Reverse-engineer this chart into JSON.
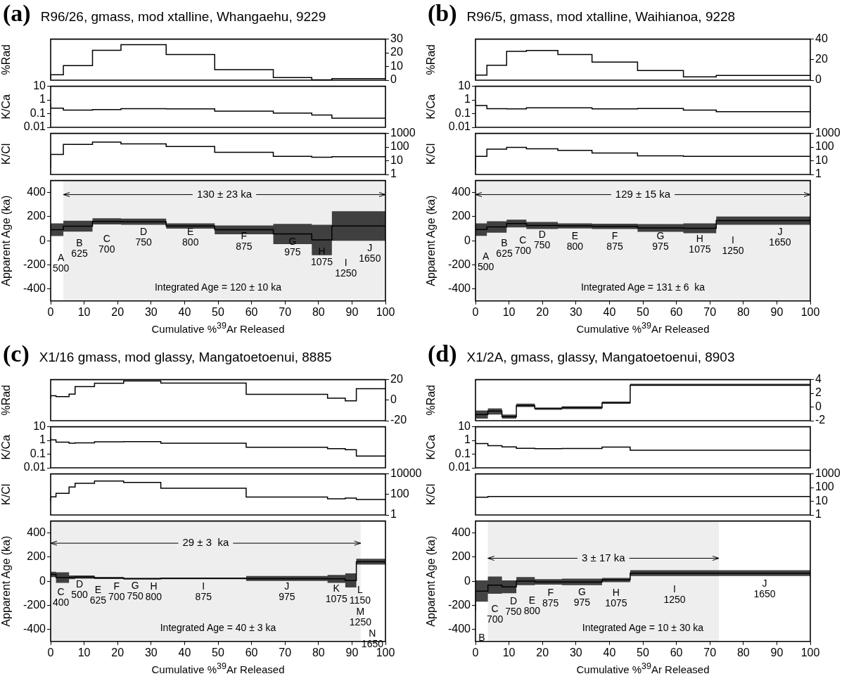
{
  "chart_data": [
    {
      "type": "step",
      "title": "(a)",
      "subtitle": "R96/26, gmass, mod xtalline, Whangaehu, 9229",
      "ylabel": "%Rad",
      "x": [
        0,
        3.8,
        12.5,
        21,
        34.5,
        49,
        66.5,
        78,
        84,
        90,
        100
      ],
      "series": [
        {
          "color": "#000000",
          "axis": "y2",
          "values": [
            1,
            4,
            10.7,
            21.8,
            26,
            18.7,
            7.7,
            1.9,
            0.3,
            1.2,
            1.2
          ]
        }
      ],
      "xlim": [
        0,
        100
      ],
      "y2lim": [
        0,
        30
      ],
      "y2ticks": [
        0,
        10,
        20,
        30
      ],
      "tick_labels": "y"
    },
    {
      "type": "step",
      "ylabel": "K/Ca",
      "x": [
        0,
        3.8,
        12.5,
        21,
        34.5,
        49,
        66.5,
        78,
        84,
        90,
        100
      ],
      "series": [
        {
          "color": "#000000",
          "values": [
            0.51,
            0.25,
            0.18,
            0.2,
            0.23,
            0.22,
            0.15,
            0.11,
            0.08,
            0.047,
            0.047
          ]
        }
      ],
      "xlim": [
        0,
        100
      ],
      "ylim": [
        0.01,
        10
      ],
      "yticks": [
        0.01,
        0.1,
        1,
        10
      ],
      "log": "y",
      "tick_labels": "y"
    },
    {
      "type": "step",
      "ylabel": "K/Cl",
      "x": [
        0,
        3.8,
        12.5,
        21,
        34.5,
        49,
        66.5,
        78,
        84,
        90,
        100
      ],
      "series": [
        {
          "color": "#000000",
          "axis": "y2",
          "values": [
            2.9,
            29,
            155,
            234,
            170,
            110,
            41,
            21,
            18,
            20,
            20
          ]
        }
      ],
      "xlim": [
        0,
        100
      ],
      "y2lim": [
        1,
        1000
      ],
      "y2ticks": [
        1,
        10,
        100,
        1000
      ],
      "log": "y2",
      "tick_labels": "y"
    },
    {
      "type": "step",
      "ylabel": "Apparent Age (ka)",
      "xlabel": "Cumulative %$^{39}$Ar Released",
      "x": [
        0,
        3.8,
        12.5,
        21,
        34.5,
        49,
        66.5,
        78,
        84,
        90,
        100
      ],
      "series": [
        {
          "color": "#000000",
          "values": [
            137,
            92,
            121,
            161,
            158,
            123,
            91,
            56,
            7,
            123,
            123
          ],
          "lower": [
            -82,
            39,
            75,
            135,
            133,
            101,
            54,
            -28,
            -120,
            0,
            0
          ],
          "upper": [
            355,
            144,
            166,
            187,
            183,
            144,
            127,
            140,
            133,
            245,
            245
          ]
        }
      ],
      "xlim": [
        0,
        100
      ],
      "xticks": [
        0,
        10,
        20,
        30,
        40,
        50,
        60,
        70,
        80,
        90,
        100
      ],
      "ylim": [
        -500,
        500
      ],
      "yticks": [
        -400,
        -200,
        0,
        200,
        400
      ],
      "bands": [
        {
          "axis": "x",
          "from": 3.8,
          "to": 100,
          "label": "130 ± 23 ka",
          "color": "#eeeeee"
        }
      ],
      "annotations": [
        "A\n500",
        "B\n625",
        "C\n700",
        "D\n750",
        "E\n800",
        "F\n875",
        "G\n975",
        "H\n1075",
        "I\n1250",
        "J\n1650",
        "Integrated Age = 120 ± 10 ka"
      ]
    },
    {
      "type": "step",
      "title": "(b)",
      "subtitle": "R96/5, gmass, mod xtalline, Waihianoa, 9228",
      "ylabel": "%Rad",
      "x": [
        0,
        3.4,
        9.3,
        15.2,
        24.6,
        34.8,
        48.4,
        62.1,
        71.9,
        81.9,
        100
      ],
      "series": [
        {
          "color": "#000000",
          "axis": "y2",
          "values": [
            1.4,
            5,
            14.6,
            28,
            29,
            25,
            17.6,
            9.4,
            3.2,
            4.6,
            4.6
          ]
        }
      ],
      "xlim": [
        0,
        100
      ],
      "y2lim": [
        0,
        40
      ],
      "y2ticks": [
        0,
        20,
        40
      ],
      "tick_labels": "y"
    },
    {
      "type": "step",
      "ylabel": "K/Ca",
      "x": [
        0,
        3.4,
        9.3,
        15.2,
        24.6,
        34.8,
        48.4,
        62.1,
        71.9,
        81.9,
        100
      ],
      "series": [
        {
          "color": "#000000",
          "values": [
            0.79,
            0.39,
            0.23,
            0.22,
            0.27,
            0.27,
            0.22,
            0.24,
            0.18,
            0.14,
            0.14
          ]
        }
      ],
      "xlim": [
        0,
        100
      ],
      "ylim": [
        0.01,
        10
      ],
      "yticks": [
        0.01,
        0.1,
        1,
        10
      ],
      "log": "y",
      "tick_labels": "y"
    },
    {
      "type": "step",
      "ylabel": "K/Cl",
      "x": [
        0,
        3.4,
        9.3,
        15.2,
        24.6,
        34.8,
        48.4,
        62.1,
        71.9,
        81.9,
        100
      ],
      "series": [
        {
          "color": "#000000",
          "axis": "y2",
          "values": [
            2.4,
            21,
            70,
            94,
            76,
            57,
            37,
            23,
            21,
            21,
            21
          ]
        }
      ],
      "xlim": [
        0,
        100
      ],
      "y2lim": [
        1,
        1000
      ],
      "y2ticks": [
        1,
        10,
        100,
        1000
      ],
      "log": "y2",
      "tick_labels": "y"
    },
    {
      "type": "step",
      "ylabel": "Apparent Age (ka)",
      "xlabel": "Cumulative %$^{39}$Ar Released",
      "x": [
        0,
        3.4,
        9.3,
        15.2,
        24.6,
        34.8,
        48.4,
        62.1,
        71.9,
        81.9,
        100
      ],
      "series": [
        {
          "color": "#000000",
          "values": [
            133,
            93,
            115,
            143,
            127,
            124,
            119,
            106,
            104,
            167,
            167
          ],
          "lower": [
            -67,
            41,
            67,
            110,
            97,
            102,
            97,
            74,
            63,
            132,
            132
          ],
          "upper": [
            333,
            145,
            162,
            175,
            156,
            145,
            141,
            138,
            145,
            201,
            201
          ]
        }
      ],
      "xlim": [
        0,
        100
      ],
      "xticks": [
        0,
        10,
        20,
        30,
        40,
        50,
        60,
        70,
        80,
        90,
        100
      ],
      "ylim": [
        -500,
        500
      ],
      "yticks": [
        -400,
        -200,
        0,
        200,
        400
      ],
      "bands": [
        {
          "axis": "x",
          "from": 0,
          "to": 100,
          "label": "129 ± 15 ka",
          "color": "#eeeeee"
        }
      ],
      "annotations": [
        "A\n500",
        "B\n625",
        "C\n700",
        "D\n750",
        "E\n800",
        "F\n875",
        "G\n975",
        "H\n1075",
        "I\n1250",
        "J\n1650",
        "Integrated Age = 131 ± 6  ka"
      ]
    },
    {
      "type": "step",
      "title": "(c)",
      "subtitle": "X1/16 gmass, mod glassy, Mangatoetoenui, 8885",
      "ylabel": "%Rad",
      "x": [
        0,
        1.6,
        5.5,
        7.3,
        13.1,
        21.8,
        32.9,
        58.4,
        82.7,
        88,
        91.3,
        92.6,
        100
      ],
      "series": [
        {
          "color": "#000000",
          "axis": "y2",
          "values": [
            1.6,
            4.3,
            3.4,
            5.9,
            13.3,
            16.5,
            18.7,
            16.7,
            5.7,
            2,
            -0.7,
            11.2,
            11.2
          ]
        }
      ],
      "xlim": [
        0,
        100
      ],
      "y2lim": [
        -20,
        20
      ],
      "y2ticks": [
        -20,
        0,
        20
      ],
      "tick_labels": "y"
    },
    {
      "type": "step",
      "ylabel": "K/Ca",
      "x": [
        0,
        1.6,
        5.5,
        7.3,
        13.1,
        21.8,
        32.9,
        58.4,
        82.7,
        88,
        91.3,
        92.6,
        100
      ],
      "series": [
        {
          "color": "#000000",
          "values": [
            1.7,
            1.1,
            0.76,
            0.62,
            0.67,
            0.79,
            0.82,
            0.62,
            0.32,
            0.25,
            0.21,
            0.073,
            0.073
          ]
        }
      ],
      "xlim": [
        0,
        100
      ],
      "ylim": [
        0.01,
        10
      ],
      "yticks": [
        0.01,
        0.1,
        1,
        10
      ],
      "log": "y",
      "tick_labels": "y"
    },
    {
      "type": "step",
      "ylabel": "K/Cl",
      "x": [
        0,
        1.6,
        5.5,
        7.3,
        13.1,
        21.8,
        32.9,
        58.4,
        82.7,
        88,
        91.3,
        92.6,
        100
      ],
      "series": [
        {
          "color": "#000000",
          "axis": "y2",
          "values": [
            21,
            58,
            130,
            520,
            1200,
            2000,
            1500,
            400,
            55,
            37,
            44,
            32,
            32
          ]
        }
      ],
      "xlim": [
        0,
        100
      ],
      "y2lim": [
        1,
        10000
      ],
      "y2ticks": [
        1,
        100,
        10000
      ],
      "log": "y2",
      "tick_labels": "y"
    },
    {
      "type": "step",
      "ylabel": "Apparent Age (ka)",
      "xlabel": "Cumulative %$^{39}$Ar Released",
      "x": [
        0,
        1.6,
        5.5,
        7.3,
        13.1,
        21.8,
        32.9,
        58.4,
        82.7,
        88,
        91.3,
        92.6,
        100
      ],
      "series": [
        {
          "color": "#000000",
          "values": [
            67,
            56,
            30,
            32,
            35,
            27,
            22,
            24,
            22,
            20,
            6,
            162,
            162
          ],
          "lower": [
            -30,
            35,
            -13,
            17,
            22,
            19,
            15,
            17,
            2,
            -13,
            -52,
            138,
            138
          ],
          "upper": [
            164,
            78,
            74,
            48,
            48,
            35,
            28,
            30,
            43,
            52,
            65,
            186,
            186
          ]
        }
      ],
      "xlim": [
        0,
        100
      ],
      "xticks": [
        0,
        10,
        20,
        30,
        40,
        50,
        60,
        70,
        80,
        90,
        100
      ],
      "ylim": [
        -500,
        500
      ],
      "yticks": [
        -400,
        -200,
        0,
        200,
        400
      ],
      "bands": [
        {
          "axis": "x",
          "from": 0,
          "to": 92.6,
          "label": "29 ± 3  ka",
          "color": "#eeeeee"
        }
      ],
      "annotations": [
        "C\n400",
        "D\n500",
        "E\n625",
        "F\n700",
        "G\n750",
        "H\n800",
        "I\n875",
        "J\n975",
        "K\n1075",
        "L\n1150",
        "M\n1250",
        "N\n1650",
        "Integrated Age = 40 ± 3 ka"
      ]
    },
    {
      "type": "step",
      "title": "(d)",
      "subtitle": "X1/2A, gmass, glassy, Mangatoetoenui, 8903",
      "ylabel": "%Rad",
      "x": [
        0,
        3.7,
        7.9,
        12.2,
        17.7,
        25.8,
        37.8,
        46.2,
        72.7,
        100
      ],
      "series": [
        {
          "color": "#000000",
          "axis": "y2",
          "values": [
            -1.4,
            -1.1,
            -0.6,
            -1.4,
            0.2,
            -0.2,
            -0.1,
            0.6,
            3.2,
            3.2
          ],
          "lower": [
            -2,
            -1.7,
            -1.1,
            -1.7,
            0,
            -0.4,
            -0.3,
            0.5,
            3.1,
            3.1
          ],
          "upper": [
            -0.7,
            -0.5,
            -0.2,
            -1.1,
            0.5,
            -0.1,
            0.1,
            0.8,
            3.4,
            3.4
          ]
        }
      ],
      "xlim": [
        0,
        100
      ],
      "y2lim": [
        -2,
        4
      ],
      "y2ticks": [
        -2,
        0,
        2,
        4
      ],
      "tick_labels": "y"
    },
    {
      "type": "step",
      "ylabel": "K/Ca",
      "x": [
        0,
        3.7,
        7.9,
        12.2,
        17.7,
        25.8,
        37.8,
        46.2,
        72.7,
        100
      ],
      "series": [
        {
          "color": "#000000",
          "values": [
            0.8,
            0.6,
            0.42,
            0.34,
            0.27,
            0.25,
            0.26,
            0.33,
            0.19,
            0.19
          ]
        }
      ],
      "xlim": [
        0,
        100
      ],
      "ylim": [
        0.01,
        10
      ],
      "yticks": [
        0.01,
        0.1,
        1,
        10
      ],
      "log": "y",
      "tick_labels": "y"
    },
    {
      "type": "step",
      "ylabel": "K/Cl",
      "x": [
        0,
        3.7,
        7.9,
        12.2,
        17.7,
        25.8,
        37.8,
        46.2,
        72.7,
        100
      ],
      "series": [
        {
          "color": "#000000",
          "axis": "y2",
          "values": [
            18,
            20,
            22,
            22,
            22,
            22,
            22,
            22,
            22,
            22
          ]
        }
      ],
      "xlim": [
        0,
        100
      ],
      "y2lim": [
        1,
        1000
      ],
      "y2ticks": [
        1,
        10,
        100,
        1000
      ],
      "log": "y2",
      "tick_labels": "y"
    },
    {
      "type": "step",
      "ylabel": "Apparent Age (ka)",
      "xlabel": "Cumulative %$^{39}$Ar Released",
      "x": [
        0,
        3.7,
        7.9,
        12.2,
        17.7,
        25.8,
        37.8,
        46.2,
        72.7,
        100
      ],
      "series": [
        {
          "color": "#000000",
          "values": [
            -248,
            -82,
            -33,
            -47,
            1,
            -6,
            -6,
            11,
            67,
            67
          ],
          "lower": [
            -409,
            -170,
            -104,
            -100,
            -33,
            -28,
            -33,
            -7,
            43,
            43
          ],
          "upper": [
            -87,
            7,
            39,
            7,
            35,
            17,
            22,
            28,
            91,
            91
          ]
        }
      ],
      "xlim": [
        0,
        100
      ],
      "xticks": [
        0,
        10,
        20,
        30,
        40,
        50,
        60,
        70,
        80,
        90,
        100
      ],
      "ylim": [
        -500,
        500
      ],
      "yticks": [
        -400,
        -200,
        0,
        200,
        400
      ],
      "bands": [
        {
          "axis": "x",
          "from": 3.7,
          "to": 72.7,
          "label": "3 ± 17 ka",
          "color": "#eeeeee"
        }
      ],
      "annotations": [
        "B",
        "C\n700",
        "D\n750",
        "E\n800",
        "F\n875",
        "G\n975",
        "H\n1075",
        "I\n1250",
        "J\n1650",
        "Integrated Age = 10 ± 30 ka"
      ]
    }
  ]
}
